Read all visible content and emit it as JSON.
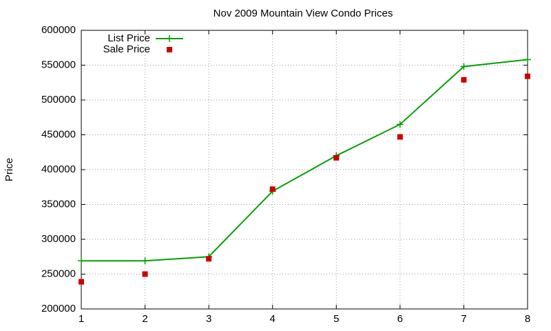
{
  "chart_data": {
    "type": "line",
    "title": "Nov 2009 Mountain View Condo Prices",
    "y_label": "Price",
    "x": [
      1,
      2,
      3,
      4,
      5,
      6,
      7,
      8
    ],
    "series": [
      {
        "name": "List Price",
        "color": "#00a000",
        "line": true,
        "marker": "plus",
        "values": [
          269000,
          269000,
          275000,
          369000,
          420000,
          465000,
          548000,
          558000
        ]
      },
      {
        "name": "Sale Price",
        "color": "#cc0000",
        "line": false,
        "marker": "square",
        "values": [
          239000,
          250000,
          272000,
          372000,
          417000,
          447000,
          529000,
          534000
        ]
      }
    ],
    "xlim": [
      1,
      8
    ],
    "xticks": [
      1,
      2,
      3,
      4,
      5,
      6,
      7,
      8
    ],
    "ylim": [
      200000,
      600000
    ],
    "yticks": [
      200000,
      250000,
      300000,
      350000,
      400000,
      450000,
      500000,
      550000,
      600000
    ],
    "grid": true,
    "legend": "top-left"
  }
}
